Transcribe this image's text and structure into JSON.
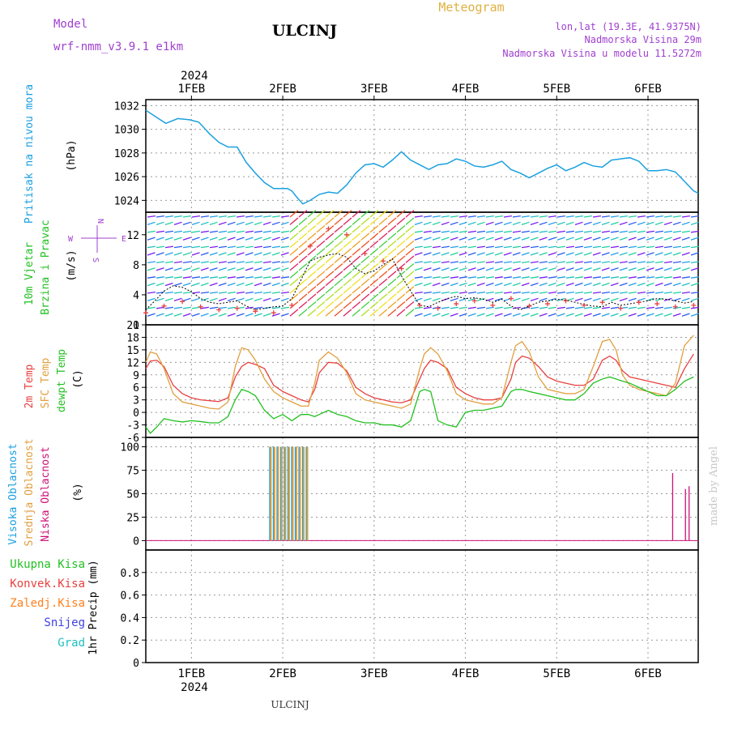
{
  "header": {
    "model_label": "Model",
    "model_name": "wrf-nmm_v3.9.1 e1km",
    "station": "ULCINJ",
    "product": "Meteogram",
    "lonlat": "lon,lat (19.3E, 41.9375N)",
    "elev": "Nadmorska Visina 29m",
    "elev_model": "Nadmorska Visina u modelu 11.5272m",
    "year": "2024",
    "footer_station": "ULCINJ",
    "credit": "made by Angel"
  },
  "colors": {
    "pressure": "#1aa0e0",
    "wind_label": "#22c022",
    "temp2m": "#e84040",
    "sfc": "#e0a040",
    "dewpt": "#22c022",
    "high_cloud": "#1aa0e0",
    "mid_cloud": "#e0a040",
    "low_cloud": "#cc1177",
    "total_precip": "#22c022",
    "conv_precip": "#e84040",
    "freezing": "#ff8020",
    "snow": "#4040e0",
    "grad": "#20c0c0",
    "header_purple": "#a040d0",
    "meteogram": "#e0b040"
  },
  "chart_data": [
    {
      "type": "line",
      "panel": "pressure",
      "ylabel": "Pritisak na nivou mora",
      "unit": "(hPa)",
      "ylim": [
        1023,
        1032.5
      ],
      "yticks": [
        1024,
        1026,
        1028,
        1030,
        1032
      ],
      "xticks": [
        "1FEB",
        "2FEB",
        "3FEB",
        "4FEB",
        "5FEB",
        "6FEB"
      ],
      "x_day_start": 0.5,
      "x_day_end": 6.55,
      "series": [
        {
          "x": [
            0.5,
            0.62,
            0.72,
            0.85,
            0.98,
            1.08,
            1.2,
            1.3,
            1.4,
            1.5,
            1.6,
            1.7,
            1.8,
            1.9,
            2.0,
            2.05,
            2.1,
            2.15,
            2.22,
            2.3,
            2.4,
            2.5,
            2.6,
            2.7,
            2.8,
            2.9,
            3.0,
            3.1,
            3.2,
            3.3,
            3.4,
            3.5,
            3.6,
            3.7,
            3.8,
            3.9,
            4.0,
            4.1,
            4.2,
            4.3,
            4.4,
            4.5,
            4.6,
            4.7,
            4.8,
            4.9,
            5.0,
            5.1,
            5.2,
            5.3,
            5.4,
            5.5,
            5.6,
            5.7,
            5.8,
            5.9,
            6.0,
            6.1,
            6.2,
            6.3,
            6.4,
            6.5,
            6.55
          ],
          "y": [
            1031.6,
            1031.0,
            1030.5,
            1030.9,
            1030.8,
            1030.6,
            1029.6,
            1028.9,
            1028.5,
            1028.5,
            1027.2,
            1026.3,
            1025.5,
            1025.0,
            1025.0,
            1025.0,
            1024.8,
            1024.3,
            1023.7,
            1024.0,
            1024.5,
            1024.7,
            1024.6,
            1025.3,
            1026.3,
            1027.0,
            1027.1,
            1026.8,
            1027.4,
            1028.1,
            1027.4,
            1027.0,
            1026.6,
            1027.0,
            1027.1,
            1027.5,
            1027.3,
            1026.9,
            1026.8,
            1027.0,
            1027.3,
            1026.6,
            1026.3,
            1025.9,
            1026.3,
            1026.7,
            1027.0,
            1026.5,
            1026.8,
            1027.2,
            1026.9,
            1026.8,
            1027.4,
            1027.5,
            1027.6,
            1027.3,
            1026.5,
            1026.5,
            1026.6,
            1026.4,
            1025.6,
            1024.8,
            1024.6
          ]
        }
      ]
    },
    {
      "type": "scatter",
      "panel": "wind",
      "ylabel": "10m Vjetar Brzina i Pravac",
      "unit": "(m/s)",
      "ylim": [
        0,
        15
      ],
      "yticks": [
        0,
        4,
        8,
        12
      ],
      "compass": {
        "n": "N",
        "s": "S",
        "e": "E",
        "w": "W"
      },
      "speed_x": [
        0.5,
        0.6,
        0.7,
        0.8,
        0.9,
        1.0,
        1.1,
        1.2,
        1.3,
        1.4,
        1.5,
        1.6,
        1.7,
        1.8,
        1.9,
        2.0,
        2.1,
        2.2,
        2.3,
        2.4,
        2.5,
        2.6,
        2.7,
        2.8,
        2.9,
        3.0,
        3.1,
        3.2,
        3.3,
        3.4,
        3.5,
        3.6,
        3.7,
        3.8,
        3.9,
        4.0,
        4.1,
        4.2,
        4.3,
        4.4,
        4.5,
        4.6,
        4.7,
        4.8,
        4.9,
        5.0,
        5.1,
        5.2,
        5.3,
        5.4,
        5.5,
        5.6,
        5.7,
        5.8,
        5.9,
        6.0,
        6.1,
        6.2,
        6.3,
        6.4,
        6.5
      ],
      "speed_y": [
        2.0,
        3.2,
        4.5,
        5.2,
        5.0,
        4.4,
        3.5,
        3.0,
        2.8,
        3.0,
        3.2,
        2.5,
        2.0,
        2.2,
        2.4,
        2.5,
        3.5,
        6.0,
        8.5,
        9.0,
        9.3,
        9.5,
        9.0,
        7.5,
        6.8,
        7.2,
        8.0,
        8.8,
        6.5,
        4.5,
        2.6,
        2.4,
        3.0,
        3.5,
        3.8,
        3.5,
        3.6,
        3.4,
        3.0,
        3.4,
        2.5,
        2.0,
        2.5,
        3.0,
        3.2,
        3.4,
        3.3,
        3.0,
        2.7,
        2.5,
        2.4,
        3.0,
        2.6,
        2.8,
        3.0,
        3.2,
        3.5,
        3.4,
        3.2,
        2.9,
        3.1
      ],
      "gust_x": [
        0.5,
        0.7,
        0.9,
        1.1,
        1.3,
        1.5,
        1.7,
        1.9,
        2.1,
        2.3,
        2.5,
        2.7,
        2.9,
        3.1,
        3.3,
        3.5,
        3.7,
        3.9,
        4.1,
        4.3,
        4.5,
        4.7,
        4.9,
        5.1,
        5.3,
        5.5,
        5.7,
        5.9,
        6.1,
        6.3,
        6.5
      ],
      "gust_y": [
        1.6,
        2.5,
        3.1,
        2.4,
        2.0,
        2.2,
        1.8,
        1.6,
        2.6,
        10.5,
        12.8,
        12.0,
        9.5,
        8.5,
        7.5,
        2.6,
        2.2,
        2.8,
        3.2,
        2.6,
        3.5,
        2.5,
        2.8,
        3.2,
        2.6,
        3.0,
        2.2,
        3.0,
        2.8,
        2.4,
        2.6
      ]
    },
    {
      "type": "line",
      "panel": "temperature",
      "ylabel": [
        "2m Temp",
        "SFC Temp",
        "dewpt Temp"
      ],
      "unit": "(C)",
      "ylim": [
        -6,
        21
      ],
      "yticks": [
        -6,
        -3,
        0,
        3,
        6,
        9,
        12,
        15,
        18,
        21
      ],
      "series": [
        {
          "name": "2m Temp",
          "x": [
            0.5,
            0.55,
            0.62,
            0.7,
            0.8,
            0.9,
            1.0,
            1.1,
            1.2,
            1.3,
            1.4,
            1.48,
            1.55,
            1.62,
            1.7,
            1.8,
            1.9,
            2.0,
            2.1,
            2.2,
            2.28,
            2.35,
            2.4,
            2.5,
            2.6,
            2.7,
            2.8,
            2.9,
            3.0,
            3.1,
            3.2,
            3.3,
            3.4,
            3.5,
            3.55,
            3.62,
            3.7,
            3.8,
            3.9,
            4.0,
            4.1,
            4.2,
            4.3,
            4.4,
            4.5,
            4.55,
            4.62,
            4.7,
            4.8,
            4.9,
            5.0,
            5.1,
            5.2,
            5.3,
            5.4,
            5.5,
            5.58,
            5.65,
            5.72,
            5.8,
            5.9,
            6.0,
            6.1,
            6.2,
            6.3,
            6.4,
            6.5
          ],
          "y": [
            10.5,
            12.3,
            12.5,
            11.0,
            6.5,
            4.5,
            3.5,
            3.0,
            2.8,
            2.6,
            3.5,
            8.5,
            11.0,
            12.0,
            11.5,
            10.5,
            6.5,
            5.0,
            4.0,
            3.0,
            2.5,
            5.5,
            9.5,
            12.0,
            11.8,
            10.0,
            6.0,
            4.5,
            3.5,
            3.0,
            2.5,
            2.3,
            3.0,
            8.0,
            10.5,
            12.5,
            12.0,
            10.5,
            6.0,
            4.5,
            3.5,
            3.0,
            3.0,
            3.5,
            8.0,
            12.0,
            13.5,
            13.0,
            11.0,
            8.5,
            7.5,
            7.0,
            6.5,
            6.5,
            8.0,
            12.5,
            13.5,
            12.5,
            10.0,
            8.5,
            8.0,
            7.5,
            7.0,
            6.5,
            6.0,
            10.5,
            14.0
          ]
        },
        {
          "name": "SFC Temp",
          "x": [
            0.5,
            0.55,
            0.62,
            0.7,
            0.8,
            0.9,
            1.0,
            1.1,
            1.2,
            1.3,
            1.4,
            1.48,
            1.55,
            1.62,
            1.7,
            1.8,
            1.9,
            2.0,
            2.1,
            2.2,
            2.28,
            2.35,
            2.4,
            2.5,
            2.6,
            2.7,
            2.8,
            2.9,
            3.0,
            3.1,
            3.2,
            3.3,
            3.4,
            3.5,
            3.55,
            3.62,
            3.7,
            3.8,
            3.9,
            4.0,
            4.1,
            4.2,
            4.3,
            4.4,
            4.5,
            4.55,
            4.62,
            4.7,
            4.8,
            4.9,
            5.0,
            5.1,
            5.2,
            5.3,
            5.4,
            5.5,
            5.58,
            5.65,
            5.72,
            5.8,
            5.9,
            6.0,
            6.1,
            6.2,
            6.3,
            6.4,
            6.5
          ],
          "y": [
            12.0,
            14.5,
            14.0,
            10.5,
            4.5,
            2.5,
            2.0,
            1.5,
            1.0,
            0.8,
            2.5,
            11.0,
            15.5,
            15.0,
            12.5,
            8.0,
            5.0,
            3.5,
            2.5,
            1.5,
            1.5,
            7.0,
            12.5,
            14.5,
            13.0,
            9.5,
            4.5,
            3.0,
            2.5,
            2.0,
            1.5,
            1.0,
            2.0,
            10.5,
            14.0,
            15.5,
            14.0,
            10.0,
            4.5,
            3.0,
            2.5,
            2.0,
            2.0,
            3.5,
            12.0,
            16.0,
            17.0,
            14.5,
            8.5,
            5.5,
            5.0,
            4.5,
            4.5,
            5.5,
            11.0,
            17.0,
            17.5,
            15.0,
            9.0,
            6.5,
            5.5,
            5.0,
            4.5,
            4.0,
            7.0,
            16.0,
            18.5
          ]
        },
        {
          "name": "dewpt Temp",
          "x": [
            0.5,
            0.55,
            0.62,
            0.7,
            0.8,
            0.9,
            1.0,
            1.1,
            1.2,
            1.3,
            1.4,
            1.48,
            1.55,
            1.62,
            1.7,
            1.8,
            1.9,
            2.0,
            2.1,
            2.2,
            2.28,
            2.35,
            2.4,
            2.5,
            2.6,
            2.7,
            2.8,
            2.9,
            3.0,
            3.1,
            3.2,
            3.3,
            3.4,
            3.5,
            3.55,
            3.62,
            3.7,
            3.8,
            3.9,
            4.0,
            4.1,
            4.2,
            4.3,
            4.4,
            4.5,
            4.55,
            4.62,
            4.7,
            4.8,
            4.9,
            5.0,
            5.1,
            5.2,
            5.3,
            5.4,
            5.5,
            5.58,
            5.65,
            5.72,
            5.8,
            5.9,
            6.0,
            6.1,
            6.2,
            6.3,
            6.4,
            6.5
          ],
          "y": [
            -3.5,
            -5.0,
            -3.5,
            -1.5,
            -2.0,
            -2.3,
            -2.0,
            -2.2,
            -2.5,
            -2.5,
            -1.0,
            3.0,
            5.5,
            5.0,
            4.0,
            0.5,
            -1.5,
            -0.5,
            -2.0,
            -0.5,
            -0.5,
            -1.0,
            -0.5,
            0.5,
            -0.5,
            -1.0,
            -2.0,
            -2.5,
            -2.5,
            -3.0,
            -3.0,
            -3.5,
            -2.0,
            5.0,
            5.5,
            5.0,
            -2.0,
            -3.0,
            -3.5,
            0.0,
            0.5,
            0.5,
            1.0,
            1.5,
            5.0,
            5.5,
            5.5,
            5.0,
            4.5,
            4.0,
            3.5,
            3.0,
            3.0,
            4.5,
            7.0,
            8.0,
            8.5,
            8.0,
            7.5,
            7.0,
            6.0,
            5.0,
            4.0,
            4.0,
            5.5,
            7.5,
            8.5
          ]
        }
      ]
    },
    {
      "type": "bar",
      "panel": "cloud",
      "ylabel": [
        "Visoka Oblacnost",
        "Srednja Oblacnost",
        "Niska Oblacnost"
      ],
      "unit": "(%)",
      "ylim": [
        -10,
        110
      ],
      "yticks": [
        0,
        25,
        50,
        75,
        100
      ],
      "high_x": [
        1.86,
        1.9,
        1.94,
        1.98,
        2.02,
        2.06,
        2.1,
        2.14,
        2.18,
        2.22,
        2.26
      ],
      "high_y": [
        100,
        100,
        100,
        100,
        100,
        100,
        100,
        100,
        100,
        100,
        100
      ],
      "mid_x": [
        1.87,
        1.91,
        1.95,
        1.99,
        2.03,
        2.07,
        2.11,
        2.15,
        2.19,
        2.23,
        2.27
      ],
      "mid_y": [
        100,
        100,
        100,
        100,
        100,
        100,
        100,
        100,
        100,
        100,
        100
      ],
      "low_x": [
        6.27,
        6.41,
        6.45
      ],
      "low_y": [
        72,
        55,
        58
      ]
    },
    {
      "type": "bar",
      "panel": "precip",
      "ylabel": "1hr Precip (mm)",
      "legend": [
        "Ukupna Kisa",
        "Konvek.Kisa",
        "Zaledj.Kisa",
        "Snijeg",
        "Grad"
      ],
      "ylim": [
        0,
        1.0
      ],
      "yticks": [
        0,
        0.2,
        0.4,
        0.6,
        0.8
      ],
      "ytick_labels": [
        "0",
        "0.2",
        "0.4",
        "0.6",
        "0.8"
      ],
      "values": []
    }
  ]
}
